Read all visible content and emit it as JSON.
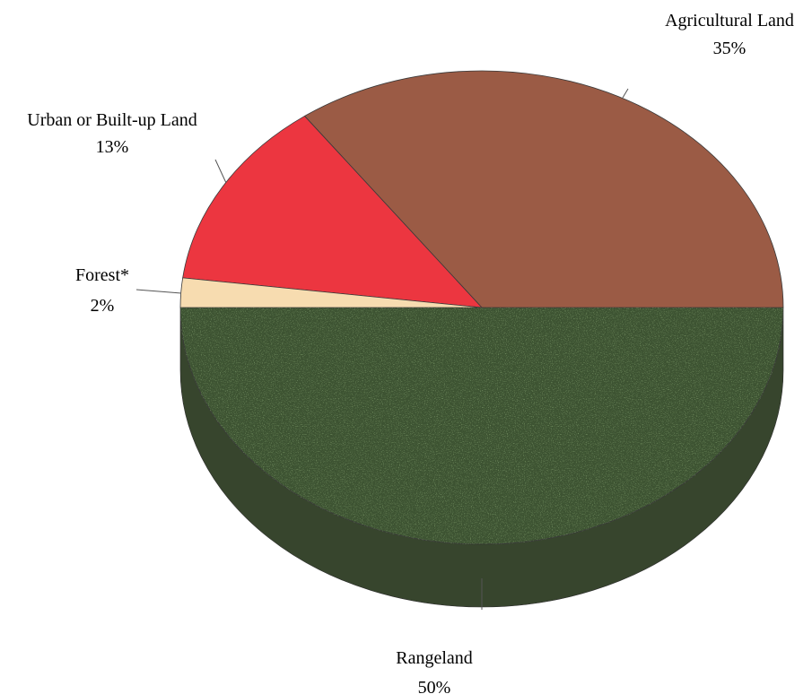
{
  "chart_data": {
    "type": "pie",
    "title": "",
    "three_d": true,
    "start_angle_deg": 0,
    "direction": "counterclockwise",
    "slices": [
      {
        "label": "Agricultural Land",
        "value": 35,
        "value_label": "35%",
        "color": "#9b5b45"
      },
      {
        "label": "Urban or Built-up Land",
        "value": 13,
        "value_label": "13%",
        "color": "#ec3640"
      },
      {
        "label": "Forest*",
        "value": 2,
        "value_label": "2%",
        "color": "#f7dcb0"
      },
      {
        "label": "Rangeland",
        "value": 50,
        "value_label": "50%",
        "color": "#3c5230"
      }
    ],
    "side_colors": {
      "Rangeland": "#37452d"
    },
    "legend": "none",
    "grid": false
  }
}
